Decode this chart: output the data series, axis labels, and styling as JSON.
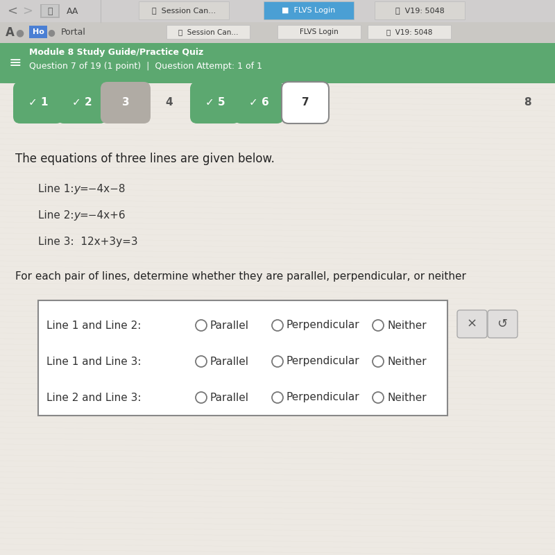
{
  "bg_color": "#ede9e3",
  "header_bg": "#5ca870",
  "header_text_color": "#ffffff",
  "header_line1": "Module 8 Study Guide/Practice Quiz",
  "header_line2": "Question 7 of 19 (1 point)  |  Question Attempt: 1 of 1",
  "problem_text": "The equations of three lines are given below.",
  "line1_label": "Line 1: ",
  "line1_eq": "y = −4x − 8",
  "line2_label": "Line 2: ",
  "line2_eq": "y = −4x + 6",
  "line3": "Line 3:  12x + 3y = 3",
  "question_text": "For each pair of lines, determine whether they are parallel, perpendicular, or neither",
  "table_rows": [
    "Line 1 and Line 2:",
    "Line 1 and Line 3:",
    "Line 2 and Line 3:"
  ],
  "radio_labels": [
    "Parallel",
    "Perpendicular",
    "Neither"
  ],
  "browser_top_bg": "#d0cece",
  "addr_bar_bg": "#cac8c4",
  "green_nav_color": "#5ca870",
  "bubble_gray": "#b0aba4",
  "bubble_outline": "#888888"
}
